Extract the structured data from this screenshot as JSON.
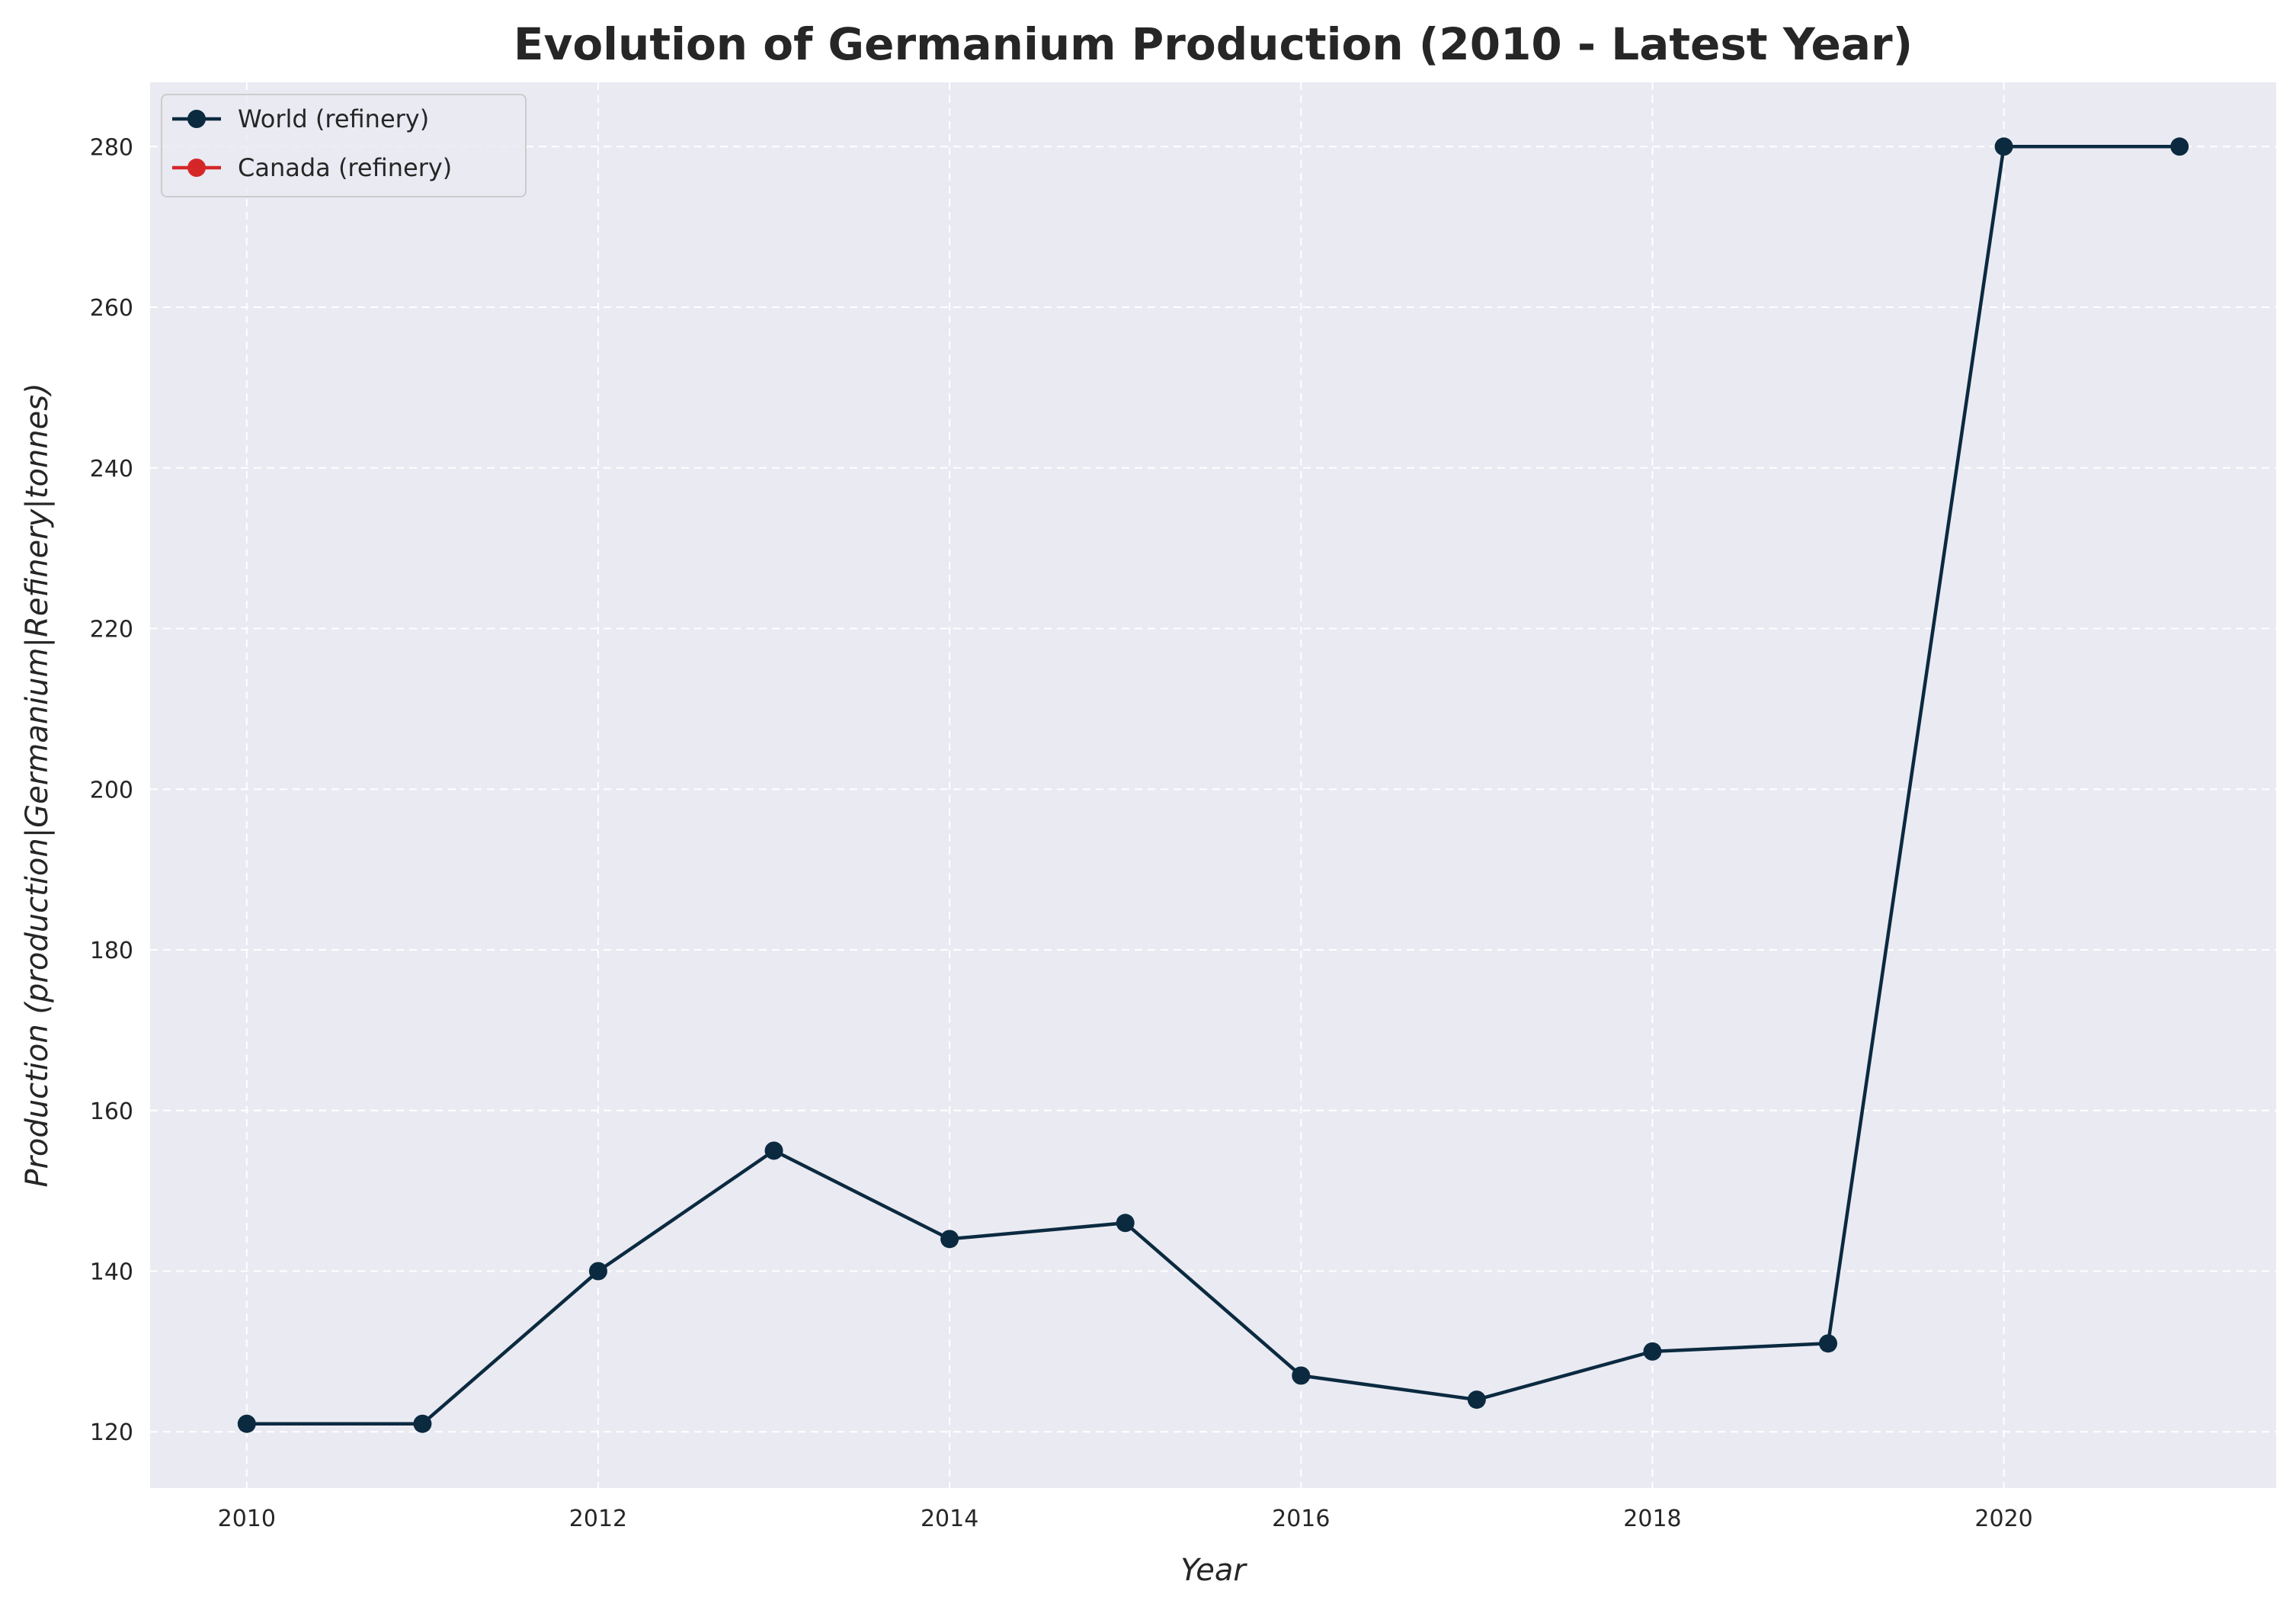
{
  "chart_data": {
    "type": "line",
    "title": "Evolution of Germanium Production (2010 - Latest Year)",
    "xlabel": "Year",
    "ylabel": "Production (production|Germanium|Refinery|tonnes)",
    "xlim": [
      2009.45,
      2021.55
    ],
    "ylim": [
      113,
      288
    ],
    "x_ticks": [
      2010,
      2012,
      2014,
      2016,
      2018,
      2020
    ],
    "y_ticks": [
      120,
      140,
      160,
      180,
      200,
      220,
      240,
      260,
      280
    ],
    "grid": true,
    "legend_position": "top-left",
    "series": [
      {
        "name": "World (refinery)",
        "color": "#0b2a40",
        "x": [
          2010,
          2011,
          2012,
          2013,
          2014,
          2015,
          2016,
          2017,
          2018,
          2019,
          2020,
          2021
        ],
        "values": [
          121,
          121,
          140,
          155,
          144,
          146,
          127,
          124,
          130,
          131,
          280,
          280
        ]
      },
      {
        "name": "Canada (refinery)",
        "color": "#d62728",
        "x": [],
        "values": []
      }
    ]
  }
}
